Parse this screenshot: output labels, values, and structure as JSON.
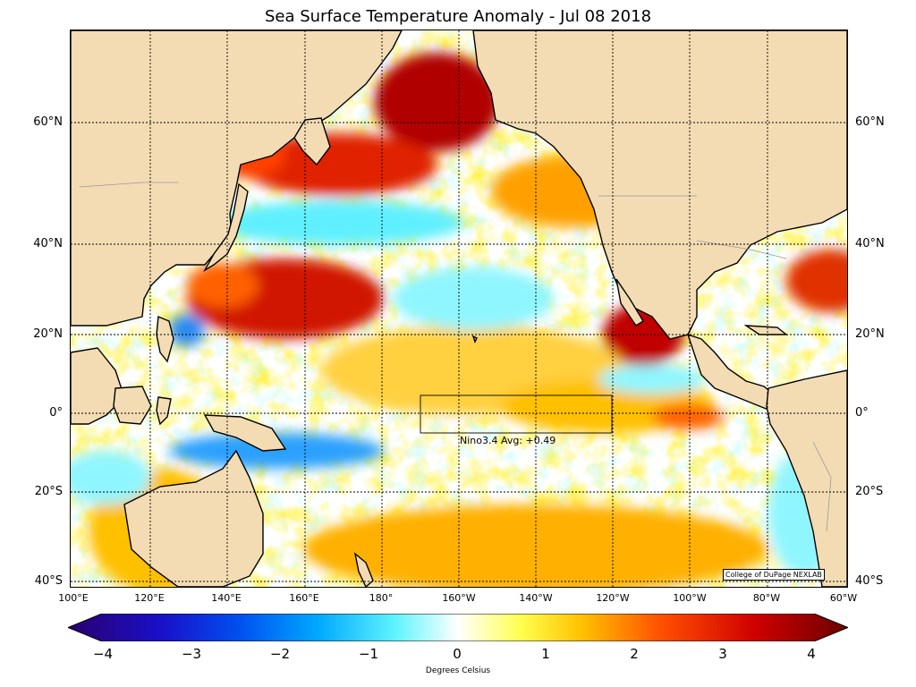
{
  "title": "Sea Surface Temperature Anomaly - Jul 08 2018",
  "credit": "College of DuPage NEXLAB",
  "nino_label": "Nino3.4 Avg: +0.49",
  "colorbar": {
    "label": "Degrees Celsius",
    "ticks": [
      "−4",
      "−3",
      "−2",
      "−1",
      "0",
      "1",
      "2",
      "3",
      "4"
    ],
    "range": [
      -4,
      4
    ],
    "colors": [
      "#2a0070",
      "#0a2ad8",
      "#0090ff",
      "#5ff0ff",
      "#ffffff",
      "#ffff40",
      "#ffb000",
      "#ff4000",
      "#b00000",
      "#7a0000"
    ]
  },
  "map": {
    "lat_labels": [
      "60°N",
      "40°N",
      "20°N",
      "0°",
      "20°S",
      "40°S"
    ],
    "lon_labels": [
      "100°E",
      "120°E",
      "140°E",
      "160°E",
      "180°",
      "160°W",
      "140°W",
      "120°W",
      "100°W",
      "80°W",
      "60°W"
    ],
    "land_color": "#f3dcb4",
    "coast_color": "#000000",
    "border_color": "#999999"
  }
}
